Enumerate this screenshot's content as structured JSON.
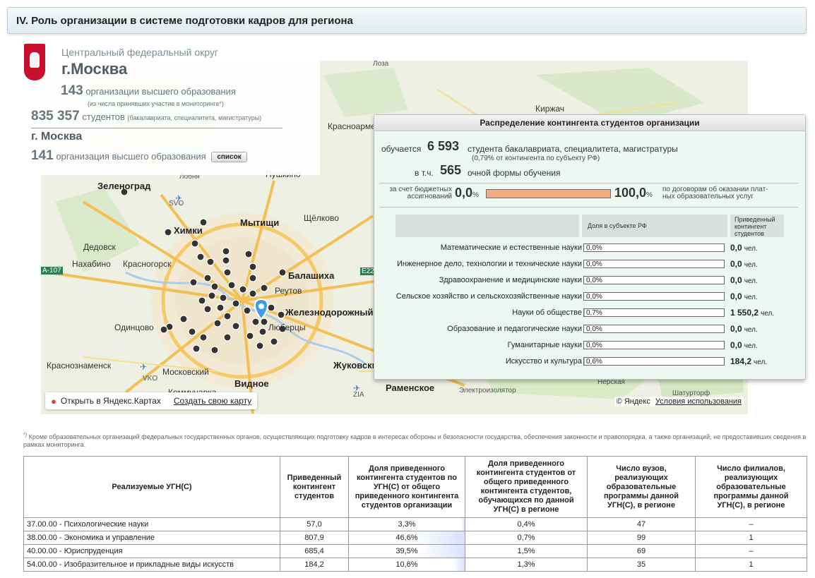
{
  "header": {
    "title": "IV. Роль организации в системе подготовки кадров для региона"
  },
  "region": {
    "district": "Центральный федеральный округ",
    "city": "г.Москва",
    "orgs_count": "143",
    "orgs_text": "организации высшего образования",
    "orgs_note": "(из числа принявших участие в мониторинге*)",
    "students_count": "835 357",
    "students_text": "студентов",
    "students_note": "(бакалавриата, специалитета, магистратуры)",
    "city2": "г. Москва",
    "city_orgs_count": "141",
    "city_orgs_text": "организация высшего образования",
    "list_button": "список"
  },
  "map": {
    "labels": [
      "Лоза",
      "Киржач",
      "Красноармейск",
      "Пушкино",
      "Лобня",
      "Зеленоград",
      "SVO",
      "Щёлково",
      "Химки",
      "Мытищи",
      "Дедовск",
      "Красногорск",
      "Нахабино",
      "Балашиха",
      "A-107",
      "E22",
      "Реутов",
      "Одинцово",
      "Железнодорожный",
      "Люберцы",
      "Краснознаменск",
      "VKO",
      "Московский",
      "Жуковский",
      "Видное",
      "Раменское",
      "Коммунарка",
      "ZIA",
      "Электроизолятор",
      "Шатурторф",
      "Нерская"
    ],
    "open_link": "Открыть в Яндекс.Картах",
    "create_link": "Создать свою карту",
    "copyright": "© Яндекс",
    "terms": "Условия использования"
  },
  "popup": {
    "title": "Распределение контингента студентов организации",
    "studying_prefix": "обучается",
    "studying_count": "6 593",
    "studying_suffix": "студента бакалавриата, специалитета, магистратуры",
    "share_note": "(0,79% от контингента по субъекту РФ)",
    "incl_prefix": "в т.ч.",
    "incl_count": "565",
    "incl_suffix": "очной формы обучения",
    "budget_label_1": "за счет бюджетных",
    "budget_label_2": "ассигнований",
    "budget_pct": "0,0",
    "paid_pct": "100,0",
    "pct_sign": "%",
    "paid_label_1": "по договорам об оказании плат-",
    "paid_label_2": "ных образовательных услуг",
    "col_share": "Доля в субъекте РФ",
    "col_contingent": "Приведенный контингент студентов",
    "unit": "чел.",
    "rows": [
      {
        "label": "Математические и естественные науки",
        "pct": "0,0%",
        "val": "0,0",
        "fill": 0
      },
      {
        "label": "Инженерное дело, технологии и технические науки",
        "pct": "0,0%",
        "val": "0,0",
        "fill": 0
      },
      {
        "label": "Здравоохранение и медицинские науки",
        "pct": "0,0%",
        "val": "0,0",
        "fill": 0
      },
      {
        "label": "Сельское хозяйство и сельскохозяйственные науки",
        "pct": "0,0%",
        "val": "0,0",
        "fill": 0
      },
      {
        "label": "Науки об обществе",
        "pct": "0,7%",
        "val": "1 550,2",
        "fill": 0.7
      },
      {
        "label": "Образование и педагогические науки",
        "pct": "0,0%",
        "val": "0,0",
        "fill": 0
      },
      {
        "label": "Гуманитарные науки",
        "pct": "0,0%",
        "val": "0,0",
        "fill": 0
      },
      {
        "label": "Искусство и культура",
        "pct": "0,6%",
        "val": "184,2",
        "fill": 0.6
      }
    ]
  },
  "footnote": {
    "mark": "*)",
    "text": "Кроме образовательных организаций федеральных государственных органов, осуществляющих подготовку кадров в интересах обороны и безопасности государства, обеспечения законности и правопорядка, а также организаций, не предоставивших сведения в рамках мониторинга."
  },
  "table": {
    "headers": [
      "Реализуемые УГН(С)",
      "Приведенный контингент студентов",
      "Доля приведенного контингента студентов по УГН(С) от общего приведенного контингента студентов организации",
      "Доля приведенного контингента студентов от общего приведенного контингента студентов, обучающихся по данной УГН(С) в регионе",
      "Число вузов, реализующих образовательные программы данной УГН(С), в регионе",
      "Число филиалов, реализующих образовательные программы данной УГН(С), в регионе"
    ],
    "rows": [
      {
        "ugn": "37.00.00 - Психологические науки",
        "contingent": "57,0",
        "share_org": "3,3%",
        "share_org_value": 3.3,
        "share_region": "0,4%",
        "vuz": "47",
        "filials": "–"
      },
      {
        "ugn": "38.00.00 - Экономика и управление",
        "contingent": "807,9",
        "share_org": "46,6%",
        "share_org_value": 46.6,
        "share_region": "0,7%",
        "vuz": "99",
        "filials": "1"
      },
      {
        "ugn": "40.00.00 - Юриспруденция",
        "contingent": "685,4",
        "share_org": "39,5%",
        "share_org_value": 39.5,
        "share_region": "1,5%",
        "vuz": "69",
        "filials": "–"
      },
      {
        "ugn": "54.00.00 - Изобразительное и прикладные виды искусств",
        "contingent": "184,2",
        "share_org": "10,6%",
        "share_org_value": 10.6,
        "share_region": "1,3%",
        "vuz": "35",
        "filials": "1"
      }
    ]
  }
}
